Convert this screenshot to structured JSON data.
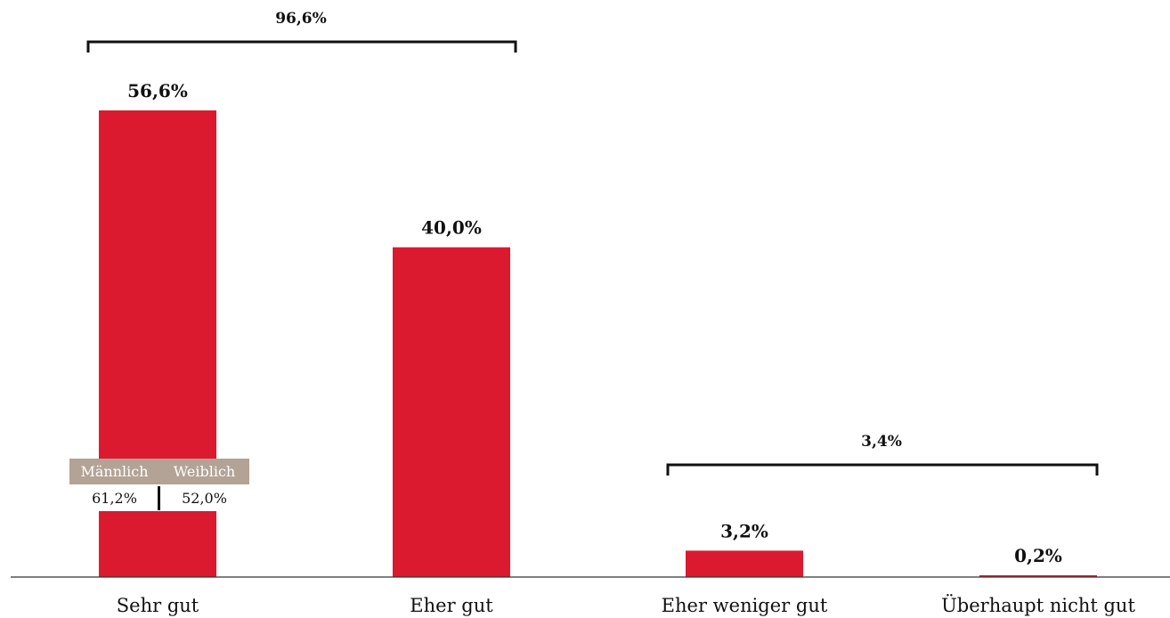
{
  "chart_data": {
    "type": "bar",
    "title": "",
    "xlabel": "",
    "ylabel": "",
    "categories": [
      "Sehr gut",
      "Eher gut",
      "Eher weniger gut",
      "Überhaupt nicht gut"
    ],
    "values": [
      56.6,
      40.0,
      3.2,
      0.2
    ],
    "value_labels": [
      "56,6%",
      "40,0%",
      "3,2%",
      "0,2%"
    ],
    "ylim": [
      0,
      60
    ],
    "grid": false,
    "bar_color": "#db1a30",
    "groups": [
      {
        "label": "96,6%",
        "categories": [
          "Sehr gut",
          "Eher gut"
        ],
        "value": 96.6
      },
      {
        "label": "3,4%",
        "categories": [
          "Eher weniger gut",
          "Überhaupt nicht gut"
        ],
        "value": 3.4
      }
    ],
    "gender_breakdown": {
      "category": "Sehr gut",
      "header_color": "#b3a396",
      "male_label": "Männlich",
      "female_label": "Weiblich",
      "male_value": "61,2%",
      "female_value": "52,0%"
    }
  }
}
